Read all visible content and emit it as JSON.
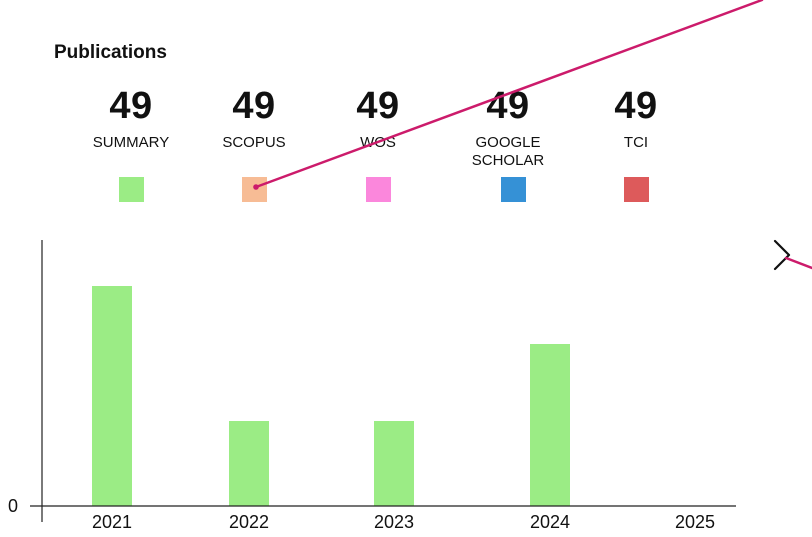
{
  "section": {
    "title": "Publications"
  },
  "stats": [
    {
      "id": "summary",
      "count": "49",
      "label": "SUMMARY",
      "color": "#9bec85"
    },
    {
      "id": "scopus",
      "count": "49",
      "label": "SCOPUS",
      "color": "#f7bc95"
    },
    {
      "id": "wos",
      "count": "49",
      "label": "WOS",
      "color": "#fb87dc"
    },
    {
      "id": "google-scholar",
      "count": "49",
      "label": "GOOGLE\nSCHOLAR",
      "color": "#3591d6"
    },
    {
      "id": "tci",
      "count": "49",
      "label": "TCI",
      "color": "#dd5a5b"
    }
  ],
  "nav": {
    "next_icon": "chevron-right-icon"
  },
  "annotation": {
    "color": "#cc1b6b"
  },
  "chart_data": {
    "type": "bar",
    "categories": [
      "2021",
      "2022",
      "2023",
      "2024",
      "2025"
    ],
    "series": [
      {
        "name": "SUMMARY",
        "values": [
          22,
          8.5,
          8.5,
          16.2,
          0
        ],
        "color": "#9bec85"
      }
    ],
    "y_ticks": [
      {
        "value": 0,
        "label": "0"
      }
    ],
    "ylim": [
      0,
      26.6
    ],
    "title": "",
    "xlabel": "",
    "ylabel": "",
    "grid": false,
    "legend": "none"
  }
}
